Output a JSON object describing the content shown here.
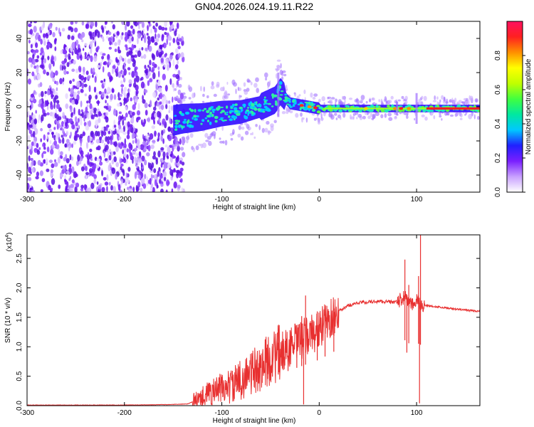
{
  "chart_data": [
    {
      "type": "heatmap",
      "title": "GN04.2026.024.19.11.R22",
      "xlabel": "Height of straight line (km)",
      "ylabel": "Frequency (Hz)",
      "xlim": [
        -300,
        165
      ],
      "ylim": [
        -50,
        50
      ],
      "xticks": [
        -300,
        -200,
        -100,
        0,
        100
      ],
      "xtick_labels": [
        "-300",
        "-200",
        "-100",
        "0",
        "100"
      ],
      "yticks": [
        -40,
        -20,
        0,
        20,
        40
      ],
      "ytick_labels": [
        "-40",
        "-20",
        "0",
        "20",
        "40"
      ],
      "colorbar": {
        "label": "Normalized spectral amplitude",
        "range": [
          0,
          1
        ],
        "ticks": [
          0.0,
          0.2,
          0.4,
          0.6,
          0.8
        ],
        "tick_labels": [
          "0.0",
          "0.2",
          "0.4",
          "0.6",
          "0.8"
        ],
        "colors": [
          "#ffffff",
          "#c8a0ff",
          "#7a1fff",
          "#2020ff",
          "#00c8ff",
          "#00e8a0",
          "#40ff40",
          "#c0ff00",
          "#ffff00",
          "#ff9000",
          "#ff2020",
          "#ff1060"
        ]
      },
      "ridge": {
        "x": [
          -150,
          -140,
          -120,
          -100,
          -80,
          -60,
          -45,
          -40,
          -30,
          -10,
          0,
          40,
          80,
          100,
          120,
          165
        ],
        "y": [
          -8,
          -7,
          -6,
          -4,
          -3,
          0,
          4,
          9,
          2,
          0,
          -1,
          -1,
          -1,
          -1,
          -1,
          -1
        ]
      },
      "noise_region_x": [
        -300,
        -145
      ]
    },
    {
      "type": "line",
      "xlabel": "Height of straight line (km)",
      "ylabel": "SNR (10 * v/v)",
      "ylabel_scale": "(x10",
      "ylabel_scale_exp": "4",
      "ylabel_scale_close": ")",
      "xlim": [
        -300,
        165
      ],
      "ylim": [
        0,
        2.9
      ],
      "xticks": [
        -300,
        -200,
        -100,
        0,
        100
      ],
      "xtick_labels": [
        "-300",
        "-200",
        "-100",
        "0",
        "100"
      ],
      "yticks": [
        0.0,
        0.5,
        1.0,
        1.5,
        2.0,
        2.5
      ],
      "ytick_labels": [
        "0.0",
        "0.5",
        "1.0",
        "1.5",
        "2.0",
        "2.5"
      ],
      "color": "#e83030",
      "series": [
        {
          "name": "SNR",
          "x": [
            -300,
            -250,
            -200,
            -150,
            -135,
            -125,
            -115,
            -100,
            -90,
            -80,
            -70,
            -60,
            -50,
            -40,
            -30,
            -20,
            -10,
            0,
            10,
            20,
            30,
            40,
            60,
            80,
            88,
            95,
            100,
            105,
            120,
            140,
            165
          ],
          "y": [
            0.01,
            0.01,
            0.01,
            0.02,
            0.03,
            0.1,
            0.2,
            0.3,
            0.33,
            0.45,
            0.55,
            0.65,
            0.8,
            0.9,
            1.0,
            1.1,
            1.2,
            1.3,
            1.45,
            1.6,
            1.7,
            1.75,
            1.77,
            1.76,
            1.85,
            1.7,
            1.78,
            1.71,
            1.68,
            1.64,
            1.6
          ]
        }
      ],
      "spikes": [
        {
          "x": -120,
          "y": 0.27
        },
        {
          "x": -105,
          "y": 0.38
        },
        {
          "x": -95,
          "y": 0.42
        },
        {
          "x": -85,
          "y": 0.5
        },
        {
          "x": -78,
          "y": 0.56
        },
        {
          "x": -62,
          "y": 0.72
        },
        {
          "x": -53,
          "y": 0.9
        },
        {
          "x": -48,
          "y": 1.05
        },
        {
          "x": -42,
          "y": 1.07
        },
        {
          "x": -32,
          "y": 0.85
        },
        {
          "x": -23,
          "y": 0.95
        },
        {
          "x": -18,
          "y": 1.52
        },
        {
          "x": -14,
          "y": 1.87
        },
        {
          "x": -2,
          "y": 1.6
        },
        {
          "x": 6,
          "y": 1.55
        },
        {
          "x": 15,
          "y": 1.65
        },
        {
          "x": 88,
          "y": 2.48
        },
        {
          "x": 92,
          "y": 2.05
        },
        {
          "x": 102,
          "y": 2.2
        },
        {
          "x": 104,
          "y": 2.95
        }
      ],
      "dips": [
        {
          "x": -16,
          "y": 0.02
        },
        {
          "x": 90,
          "y": 0.9
        },
        {
          "x": 103,
          "y": 0.04
        }
      ]
    }
  ]
}
